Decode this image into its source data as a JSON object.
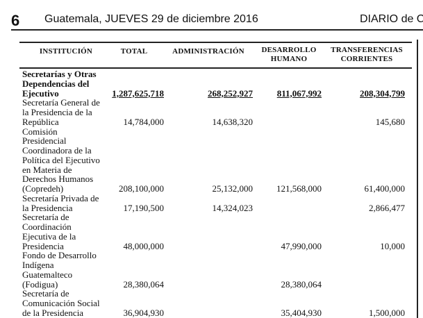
{
  "header": {
    "page_number": "6",
    "date_line": "Guatemala, JUEVES 29 de diciembre 2016",
    "publication": "DIARIO de C"
  },
  "table": {
    "columns": [
      "INSTITUCIÓN",
      "TOTAL",
      "ADMINISTRACIÓN",
      "DESARROLLO HUMANO",
      "TRANSFERENCIAS CORRIENTES"
    ],
    "column_lines": {
      "desarrollo": [
        "DESARROLLO",
        "HUMANO"
      ],
      "transferencias": [
        "TRANSFERENCIAS",
        "CORRIENTES"
      ]
    },
    "rows": [
      {
        "lines": [
          "Secretarías y Otras",
          "Dependencias del",
          "Ejecutivo"
        ],
        "total": "1,287,625,718",
        "administracion": "268,252,927",
        "desarrollo_humano": "811,067,992",
        "transferencias": "208,304,799"
      },
      {
        "lines": [
          "Secretaría General de",
          "la Presidencia de la",
          "República"
        ],
        "total": "14,784,000",
        "administracion": "14,638,320",
        "desarrollo_humano": "",
        "transferencias": "145,680"
      },
      {
        "lines": [
          "Comisión",
          "Presidencial",
          "Coordinadora de la",
          "Política del Ejecutivo",
          "en Materia de",
          "Derechos Humanos",
          "(Copredeh)"
        ],
        "total": "208,100,000",
        "administracion": "25,132,000",
        "desarrollo_humano": "121,568,000",
        "transferencias": "61,400,000"
      },
      {
        "lines": [
          "Secretaría Privada de",
          "la Presidencia"
        ],
        "total": "17,190,500",
        "administracion": "14,324,023",
        "desarrollo_humano": "",
        "transferencias": "2,866,477"
      },
      {
        "lines": [
          "Secretaría de",
          "Coordinación",
          "Ejecutiva de la",
          "Presidencia"
        ],
        "total": "48,000,000",
        "administracion": "",
        "desarrollo_humano": "47,990,000",
        "transferencias": "10,000"
      },
      {
        "lines": [
          "Fondo de Desarrollo",
          "Indígena",
          "Guatemalteco",
          "(Fodigua)"
        ],
        "total": "28,380,064",
        "administracion": "",
        "desarrollo_humano": "28,380,064",
        "transferencias": ""
      },
      {
        "lines": [
          "Secretaría de",
          "Comunicación Social",
          "de la Presidencia"
        ],
        "total": "36,904,930",
        "administracion": "",
        "desarrollo_humano": "35,404,930",
        "transferencias": "1,500,000"
      }
    ]
  }
}
